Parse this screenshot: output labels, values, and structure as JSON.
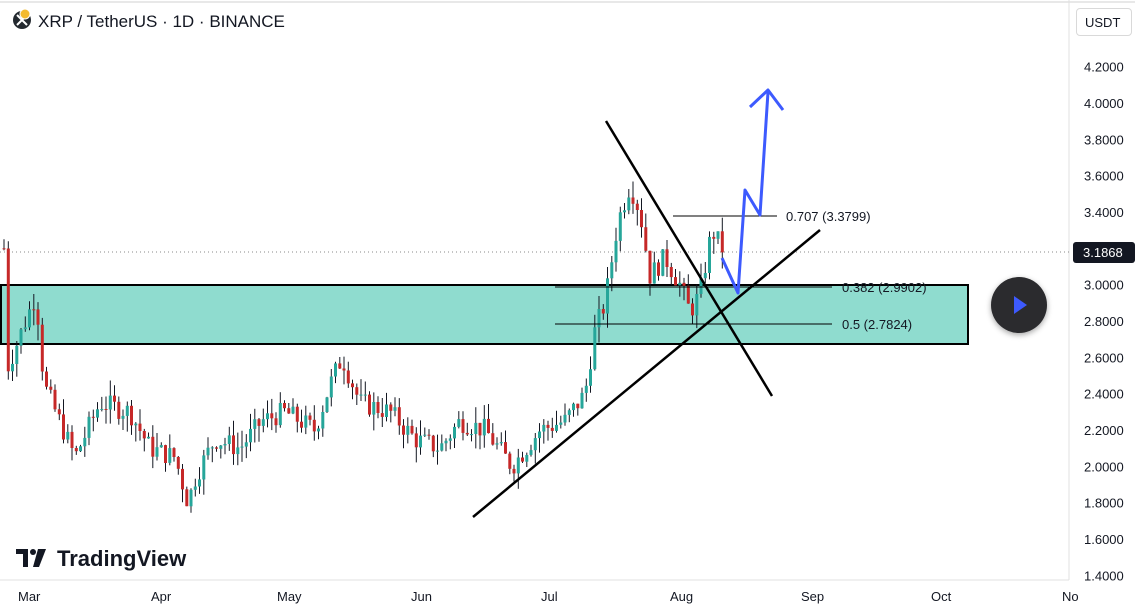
{
  "header": {
    "symbol_title": "XRP / TetherUS · 1D · BINANCE",
    "logo_icon": "xrp-logo-icon"
  },
  "axis": {
    "currency": "USDT",
    "price_ticks": [
      "4.2000",
      "4.0000",
      "3.8000",
      "3.6000",
      "3.4000",
      "3.2000",
      "3.0000",
      "2.8000",
      "2.6000",
      "2.4000",
      "2.2000",
      "2.0000",
      "1.8000",
      "1.6000",
      "1.4000"
    ],
    "current_price": "3.1868",
    "time_ticks": [
      "Mar",
      "Apr",
      "May",
      "Jun",
      "Jul",
      "Aug",
      "Sep",
      "Oct",
      "No"
    ]
  },
  "fib": {
    "f707": "0.707 (3.3799)",
    "f382": "0.382 (2.9902)",
    "f5": "0.5 (2.7824)"
  },
  "brand": {
    "name": "TradingView",
    "logo_icon": "tradingview-logo-icon"
  },
  "play_button": {
    "icon": "play-icon"
  },
  "colors": {
    "up": "#26a69a",
    "down": "#c62828",
    "zone_fill": "#8fdccf",
    "projection": "#3d5afe",
    "price_badge": "#131722"
  },
  "chart_data": {
    "type": "candlestick",
    "symbol": "XRP / TetherUS",
    "interval": "1D",
    "exchange": "BINANCE",
    "ylim": [
      1.4,
      4.3
    ],
    "x_ticks": [
      "Mar",
      "Apr",
      "May",
      "Jun",
      "Jul",
      "Aug",
      "Sep",
      "Oct"
    ],
    "last_price": 3.1868,
    "fib_levels": [
      {
        "label": "0.707",
        "price": 3.3799
      },
      {
        "label": "0.382",
        "price": 2.9902
      },
      {
        "label": "0.5",
        "price": 2.7824
      }
    ],
    "support_resistance_zone": [
      2.68,
      3.0
    ],
    "key_points": [
      {
        "date": "Mar 2",
        "price": 2.99
      },
      {
        "date": "Apr 7",
        "price": 1.61
      },
      {
        "date": "May 12",
        "price": 2.65
      },
      {
        "date": "Jun 22",
        "price": 1.91
      },
      {
        "date": "Jul 18",
        "price": 3.65
      },
      {
        "date": "Aug 2",
        "price": 2.75
      },
      {
        "date": "Aug 8",
        "price": 3.38
      }
    ]
  }
}
